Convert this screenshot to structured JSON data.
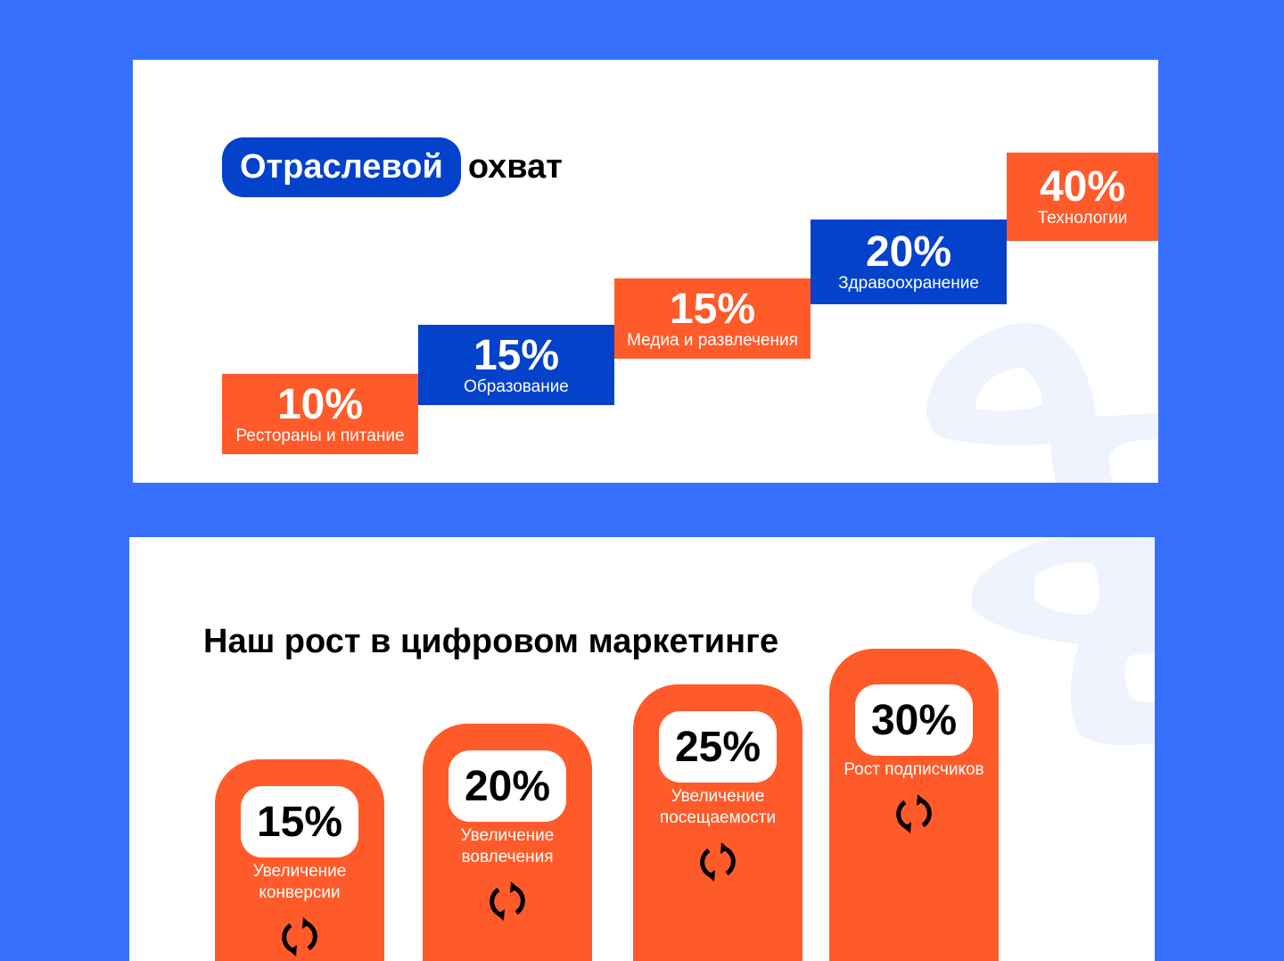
{
  "colors": {
    "background": "#3670FD",
    "orange": "#FF5B2A",
    "blue": "#0442CC",
    "watermark": "#EEF3FD"
  },
  "section1": {
    "title_highlight": "Отраслевой",
    "title_rest": "охват",
    "steps": [
      {
        "value": "10%",
        "label": "Рестораны и питание",
        "color": "orange"
      },
      {
        "value": "15%",
        "label": "Образование",
        "color": "blue"
      },
      {
        "value": "15%",
        "label": "Медиа и развлечения",
        "color": "orange"
      },
      {
        "value": "20%",
        "label": "Здравоохранение",
        "color": "blue"
      },
      {
        "value": "40%",
        "label": "Технологии",
        "color": "orange"
      }
    ]
  },
  "section2": {
    "title": "Наш рост в цифровом маркетинге",
    "columns": [
      {
        "value": "15%",
        "label": "Увеличение конверсии",
        "icon": "refresh-icon"
      },
      {
        "value": "20%",
        "label": "Увеличение вовлечения",
        "icon": "refresh-icon"
      },
      {
        "value": "25%",
        "label": "Увеличение посещаемости",
        "icon": "refresh-icon"
      },
      {
        "value": "30%",
        "label": "Рост подписчиков",
        "icon": "refresh-icon"
      }
    ]
  }
}
